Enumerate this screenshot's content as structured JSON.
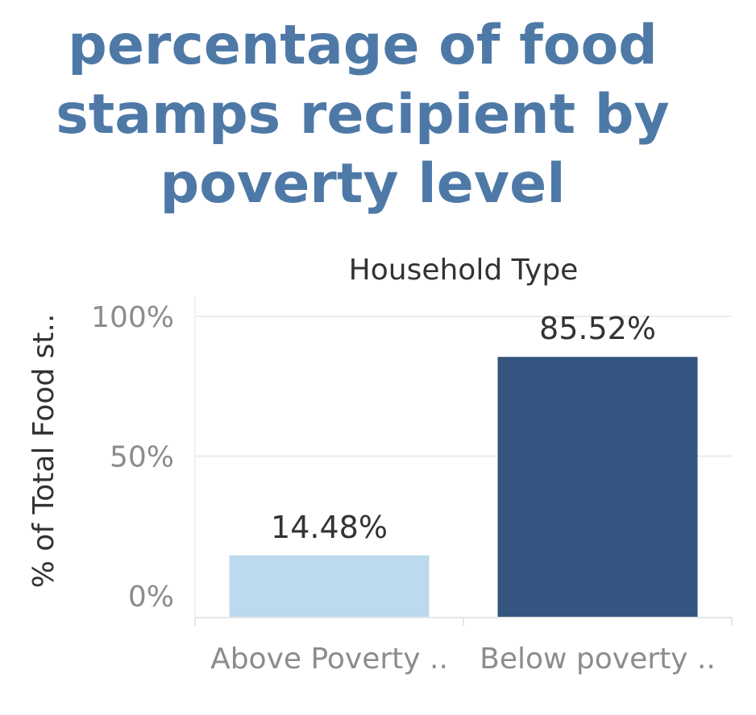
{
  "title_lines": [
    "percentage of food",
    "stamps recipient by",
    "poverty level"
  ],
  "colors": {
    "title": "#4e79a7",
    "above": "#bcd9ee",
    "below": "#33557f",
    "grid": "#ebebeb",
    "tick_text": "#8c8c8c",
    "label_text": "#333333"
  },
  "chart_data": {
    "type": "bar",
    "title": "percentage of food stamps recipient by poverty level",
    "column_header": "Household Type",
    "ylabel": "% of Total Food st..",
    "categories": [
      "Above Poverty ..",
      "Below poverty .."
    ],
    "values": [
      14.48,
      85.52
    ],
    "value_labels": [
      "14.48%",
      "85.52%"
    ],
    "ylim": [
      0,
      100
    ],
    "yticks": [
      0,
      50,
      100
    ],
    "ytick_labels": [
      "0%",
      "50%",
      "100%"
    ],
    "grid": true,
    "legend": "none"
  }
}
